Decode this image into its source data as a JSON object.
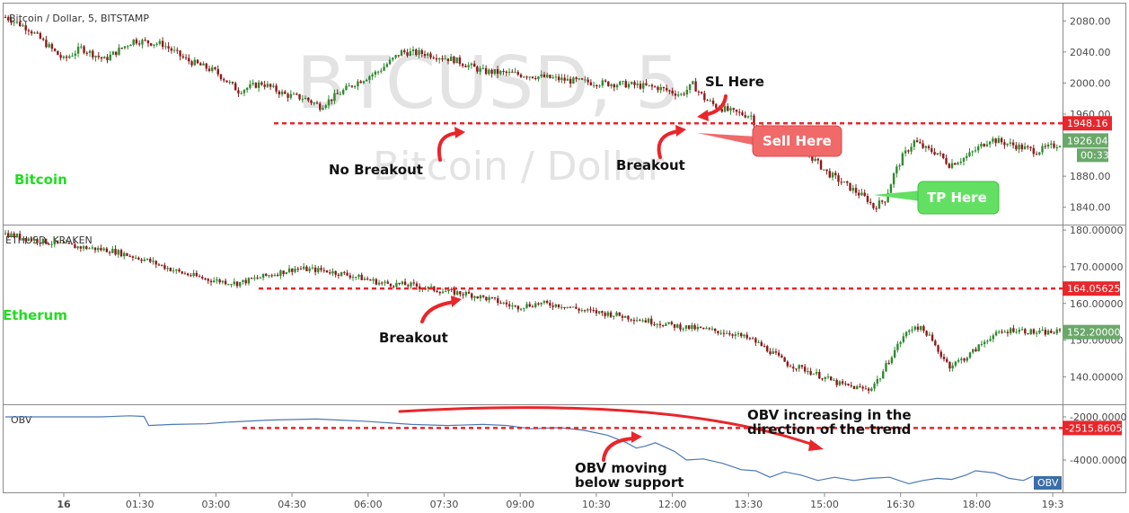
{
  "chart_data": [
    {
      "type": "candlestick",
      "title": "Bitcoin / Dollar, 5, BITSTAMP",
      "pane_label": "Bitcoin",
      "watermark": "BTCUSD, 5",
      "watermark_sub": "Bitcoin / Dollar",
      "ylim": [
        1820,
        2100
      ],
      "yticks": [
        "2080.00",
        "2040.00",
        "2000.00",
        "1960.00",
        "1880.00",
        "1840.00"
      ],
      "support": {
        "value": 1948.16,
        "label": "1948.16",
        "color": "#e8262b"
      },
      "last_price": {
        "value": 1926.04,
        "label": "1926.04",
        "countdown": "00:33",
        "color": "#6aa86a"
      },
      "path": [
        [
          0,
          2085
        ],
        [
          8,
          2070
        ],
        [
          14,
          2050
        ],
        [
          20,
          2030
        ],
        [
          26,
          2045
        ],
        [
          34,
          2030
        ],
        [
          44,
          2055
        ],
        [
          54,
          2050
        ],
        [
          62,
          2030
        ],
        [
          72,
          2015
        ],
        [
          80,
          1990
        ],
        [
          88,
          2000
        ],
        [
          96,
          1985
        ],
        [
          103,
          1980
        ],
        [
          108,
          1970
        ],
        [
          114,
          1985
        ],
        [
          120,
          2000
        ],
        [
          128,
          2015
        ],
        [
          136,
          2040
        ],
        [
          144,
          2038
        ],
        [
          154,
          2030
        ],
        [
          164,
          2015
        ],
        [
          174,
          2012
        ],
        [
          184,
          2008
        ],
        [
          194,
          2003
        ],
        [
          204,
          2000
        ],
        [
          214,
          1998
        ],
        [
          224,
          1994
        ],
        [
          232,
          1985
        ],
        [
          236,
          1998
        ],
        [
          240,
          1980
        ],
        [
          244,
          1970
        ],
        [
          250,
          1962
        ],
        [
          256,
          1958
        ],
        [
          258,
          1942
        ],
        [
          262,
          1938
        ],
        [
          268,
          1930
        ],
        [
          274,
          1915
        ],
        [
          278,
          1900
        ],
        [
          282,
          1885
        ],
        [
          286,
          1875
        ],
        [
          290,
          1865
        ],
        [
          296,
          1850
        ],
        [
          298,
          1840
        ],
        [
          302,
          1850
        ],
        [
          305,
          1882
        ],
        [
          308,
          1905
        ],
        [
          312,
          1925
        ],
        [
          316,
          1915
        ],
        [
          320,
          1910
        ],
        [
          324,
          1895
        ],
        [
          330,
          1905
        ],
        [
          338,
          1928
        ],
        [
          346,
          1920
        ],
        [
          354,
          1912
        ],
        [
          362,
          1922
        ]
      ]
    },
    {
      "type": "candlestick",
      "title": "ETHUSD, KRAKEN",
      "pane_label": "Etherum",
      "ylim": [
        133,
        181
      ],
      "yticks": [
        "180.00000",
        "170.00000",
        "160.00000",
        "150.00000",
        "140.00000"
      ],
      "support": {
        "value": 164.05625,
        "label": "164.05625",
        "color": "#e8262b"
      },
      "last_price": {
        "value": 152.2,
        "label": "152.20000",
        "color": "#6aa86a"
      },
      "path": [
        [
          0,
          179
        ],
        [
          12,
          177
        ],
        [
          24,
          175.5
        ],
        [
          36,
          174.5
        ],
        [
          48,
          172
        ],
        [
          60,
          168.5
        ],
        [
          70,
          166.5
        ],
        [
          80,
          165.5
        ],
        [
          90,
          167.5
        ],
        [
          100,
          169.5
        ],
        [
          110,
          169
        ],
        [
          120,
          167.5
        ],
        [
          130,
          165.5
        ],
        [
          140,
          165
        ],
        [
          150,
          163.5
        ],
        [
          160,
          162.5
        ],
        [
          168,
          161
        ],
        [
          176,
          159
        ],
        [
          184,
          160
        ],
        [
          192,
          159.5
        ],
        [
          200,
          158
        ],
        [
          210,
          157
        ],
        [
          220,
          155.5
        ],
        [
          230,
          154
        ],
        [
          240,
          153
        ],
        [
          250,
          152
        ],
        [
          258,
          150
        ],
        [
          264,
          147
        ],
        [
          270,
          143.5
        ],
        [
          276,
          142
        ],
        [
          282,
          140
        ],
        [
          288,
          138
        ],
        [
          294,
          137
        ],
        [
          298,
          136.5
        ],
        [
          302,
          140
        ],
        [
          306,
          146
        ],
        [
          310,
          151
        ],
        [
          314,
          154
        ],
        [
          318,
          152
        ],
        [
          322,
          147
        ],
        [
          326,
          143
        ],
        [
          332,
          145.5
        ],
        [
          340,
          151
        ],
        [
          348,
          153
        ],
        [
          356,
          152
        ],
        [
          364,
          152.2
        ]
      ]
    },
    {
      "type": "line",
      "title": "OBV",
      "ylim": [
        -5500,
        -1500
      ],
      "yticks": [
        "-2000.0000",
        "-4000.0000"
      ],
      "support": {
        "value": -2515.8605,
        "label": "-2515.8605",
        "color": "#e8262b"
      },
      "last_label": "OBV",
      "series": [
        {
          "name": "OBV",
          "values": [
            [
              0,
              -2000
            ],
            [
              40,
              -2000
            ],
            [
              52,
              -1950
            ],
            [
              58,
              -1980
            ],
            [
              60,
              -2400
            ],
            [
              70,
              -2350
            ],
            [
              84,
              -2320
            ],
            [
              92,
              -2250
            ],
            [
              110,
              -2150
            ],
            [
              130,
              -2100
            ],
            [
              150,
              -2200
            ],
            [
              170,
              -2350
            ],
            [
              185,
              -2400
            ],
            [
              200,
              -2350
            ],
            [
              210,
              -2400
            ],
            [
              220,
              -2550
            ],
            [
              232,
              -2500
            ],
            [
              242,
              -2620
            ],
            [
              252,
              -2850
            ],
            [
              260,
              -3200
            ],
            [
              264,
              -3450
            ],
            [
              268,
              -3350
            ],
            [
              272,
              -3200
            ],
            [
              276,
              -3400
            ],
            [
              280,
              -3600
            ],
            [
              285,
              -4000
            ],
            [
              292,
              -3950
            ],
            [
              300,
              -4150
            ],
            [
              308,
              -4450
            ],
            [
              314,
              -4500
            ],
            [
              320,
              -4800
            ],
            [
              326,
              -4550
            ],
            [
              333,
              -4700
            ],
            [
              340,
              -4950
            ],
            [
              347,
              -4800
            ],
            [
              355,
              -4950
            ],
            [
              362,
              -4850
            ],
            [
              370,
              -4800
            ],
            [
              378,
              -5100
            ],
            [
              384,
              -4950
            ],
            [
              390,
              -4850
            ],
            [
              396,
              -4900
            ],
            [
              402,
              -4700
            ],
            [
              406,
              -4500
            ],
            [
              414,
              -4600
            ],
            [
              420,
              -4850
            ],
            [
              426,
              -4950
            ],
            [
              430,
              -4750
            ]
          ]
        }
      ]
    }
  ],
  "x_axis": {
    "labels": [
      "16",
      "01:30",
      "03:00",
      "04:30",
      "06:00",
      "07:30",
      "09:00",
      "10:30",
      "12:00",
      "13:30",
      "15:00",
      "16:30",
      "18:00",
      "19:3"
    ]
  },
  "annotations": {
    "sl_here": "SL Here",
    "sell_here": "Sell Here",
    "tp_here": "TP Here",
    "no_breakout": "No Breakout",
    "btc_breakout": "Breakout",
    "eth_breakout": "Breakout",
    "obv_trend_1": "OBV increasing in the",
    "obv_trend_2": "direction of the trend",
    "obv_below_1": "OBV moving",
    "obv_below_2": "below support"
  },
  "colors": {
    "up": "#2f8a2f",
    "down": "#8b1a1a",
    "obv_line": "#4a78b5",
    "arrow": "#e8262b",
    "sell_bubble": "#f06a6a",
    "tp_bubble": "#63e063",
    "pane_label": "#22dd22"
  }
}
